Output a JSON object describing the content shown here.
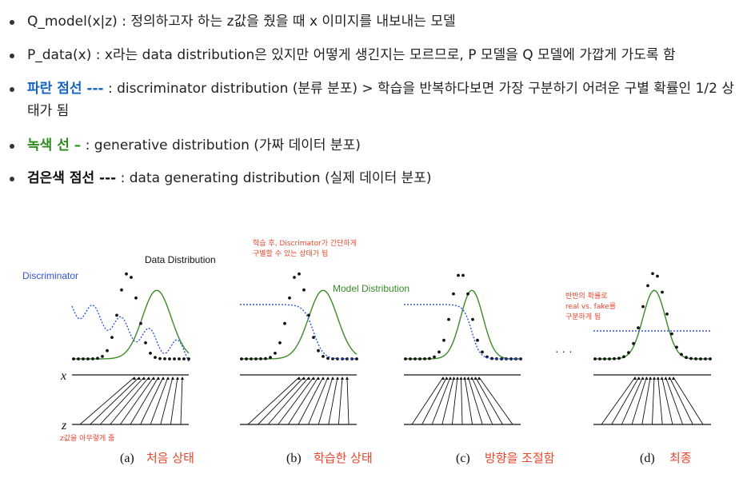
{
  "notes": [
    {
      "prefix": "",
      "text": "Q_model(x|z) : 정의하고자 하는 z값을 줬을 때 x 이미지를 내보내는 모델"
    },
    {
      "prefix": "",
      "text": "P_data(x) : x라는 data distribution은 있지만 어떻게 생긴지는 모르므로, P 모델을 Q 모델에 가깝게 가도록 함"
    },
    {
      "prefix": "파란 점선 ---",
      "text": " : discriminator distribution (분류 분포) > 학습을 반복하다보면 가장 구분하기 어려운 구별 확률인 1/2 상태가 됨"
    },
    {
      "prefix": "녹색 선 –",
      "text": " : generative distribution (가짜 데이터 분포)"
    },
    {
      "prefix": "검은색 점선 ---",
      "text": " : data generating distribution (실제 데이터 분포)"
    }
  ],
  "figure": {
    "labels": {
      "discriminator": "Discriminator",
      "data_distribution": "Data Distribution",
      "model_distribution": "Model Distribution",
      "x_axis": "x",
      "z_axis": "z",
      "ellipsis": "· · ·"
    },
    "notes_red": {
      "z_note": "z값을 아무렇게 줌",
      "b_note_1": "학습 후, Discrimator가 간단하게",
      "b_note_2": "구별할 수 있는 상태가 됨",
      "d_note_1": "반반의 확률로",
      "d_note_2": "real vs. fake를",
      "d_note_3": "구분하게 됨"
    },
    "panels": [
      {
        "id": "(a)",
        "caption": "처음 상태"
      },
      {
        "id": "(b)",
        "caption": "학습한 상태"
      },
      {
        "id": "(c)",
        "caption": "방향을 조절함"
      },
      {
        "id": "(d)",
        "caption": "최종"
      }
    ]
  },
  "colors": {
    "blue": "#1565c0",
    "green": "#2e8b1e",
    "red": "#e8452c",
    "discriminator_blue": "#3355dd",
    "model_green": "#3a8a2a"
  }
}
